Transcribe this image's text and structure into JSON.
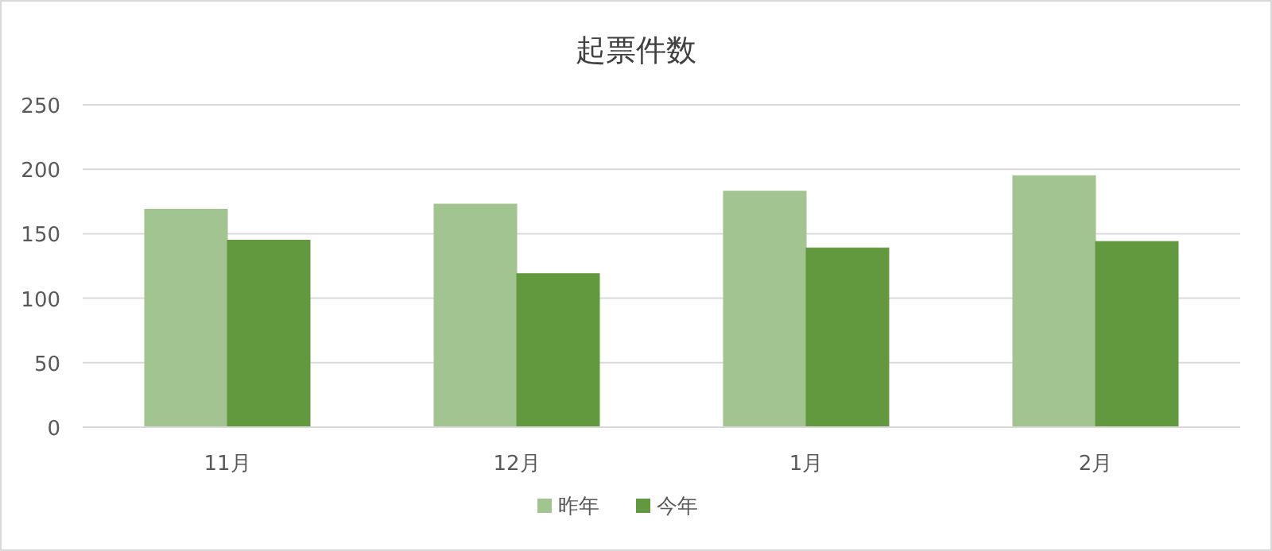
{
  "chart_data": {
    "type": "bar",
    "title": "起票件数",
    "categories": [
      "11月",
      "12月",
      "1月",
      "2月"
    ],
    "series": [
      {
        "name": "昨年",
        "color": "#a2c490",
        "values": [
          169,
          173,
          183,
          195
        ]
      },
      {
        "name": "今年",
        "color": "#62993e",
        "values": [
          145,
          119,
          139,
          144
        ]
      }
    ],
    "ylim": [
      0,
      250
    ],
    "yticks": [
      0,
      50,
      100,
      150,
      200,
      250
    ],
    "grid": "y",
    "legend": "bottom"
  }
}
